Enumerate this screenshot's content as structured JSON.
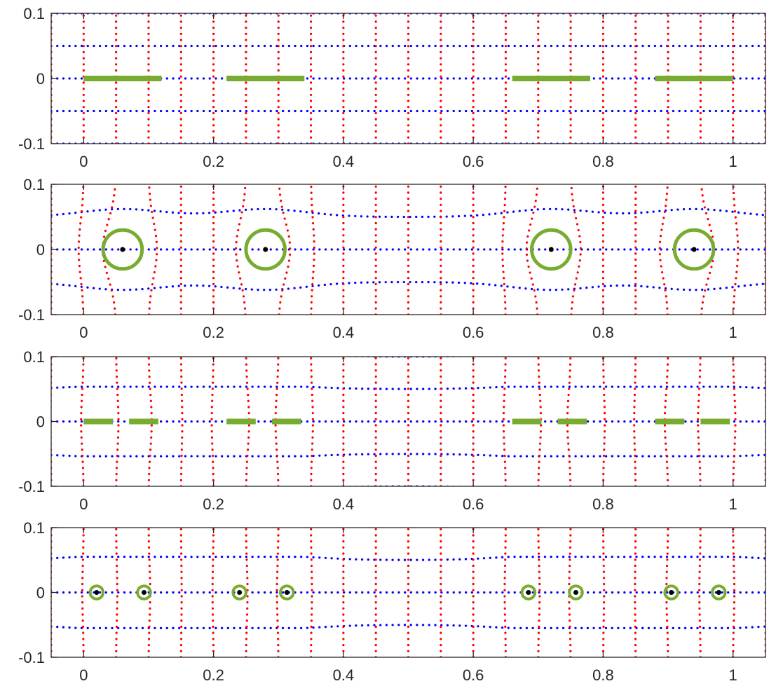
{
  "chart_data": [
    {
      "type": "line",
      "panel": "slits",
      "xlim": [
        -0.05,
        1.05
      ],
      "ylim": [
        -0.1,
        0.1
      ],
      "xticks": [
        0,
        0.2,
        0.4,
        0.6,
        0.8,
        1
      ],
      "xtick_labels": [
        "0",
        "0.2",
        "0.4",
        "0.6",
        "0.8",
        "1"
      ],
      "yticks": [
        0.1,
        0,
        -0.1
      ],
      "ytick_labels": [
        "0.1",
        "0",
        "-0.1"
      ],
      "grid": "dotted",
      "horizontal_lines_y": [
        -0.1,
        -0.05,
        0,
        0.05,
        0.1
      ],
      "vertical_lines_x": [
        -0.05,
        0,
        0.05,
        0.1,
        0.15,
        0.2,
        0.25,
        0.3,
        0.35,
        0.4,
        0.45,
        0.5,
        0.55,
        0.6,
        0.65,
        0.7,
        0.75,
        0.8,
        0.85,
        0.9,
        0.95,
        1,
        1.05
      ],
      "segments": [
        [
          0,
          0.12
        ],
        [
          0.22,
          0.34
        ],
        [
          0.66,
          0.78
        ],
        [
          0.88,
          1.0
        ]
      ],
      "distortion": 0
    },
    {
      "type": "line",
      "panel": "circles",
      "xlim": [
        -0.05,
        1.05
      ],
      "ylim": [
        -0.1,
        0.1
      ],
      "xticks": [
        0,
        0.2,
        0.4,
        0.6,
        0.8,
        1
      ],
      "xtick_labels": [
        "0",
        "0.2",
        "0.4",
        "0.6",
        "0.8",
        "1"
      ],
      "yticks": [
        0.1,
        0,
        -0.1
      ],
      "ytick_labels": [
        "0.1",
        "0",
        "-0.1"
      ],
      "grid": "dotted",
      "horizontal_lines_y": [
        -0.05,
        0,
        0.05
      ],
      "vertical_lines_x": [
        -0.05,
        0,
        0.05,
        0.1,
        0.15,
        0.2,
        0.25,
        0.3,
        0.35,
        0.4,
        0.45,
        0.5,
        0.55,
        0.6,
        0.65,
        0.7,
        0.75,
        0.8,
        0.85,
        0.9,
        0.95,
        1,
        1.05
      ],
      "circles": [
        {
          "cx": 0.06,
          "cy": 0,
          "r": 0.03
        },
        {
          "cx": 0.28,
          "cy": 0,
          "r": 0.03
        },
        {
          "cx": 0.72,
          "cy": 0,
          "r": 0.03
        },
        {
          "cx": 0.94,
          "cy": 0,
          "r": 0.03
        }
      ],
      "distortion": 1
    },
    {
      "type": "line",
      "panel": "split-slits",
      "xlim": [
        -0.05,
        1.05
      ],
      "ylim": [
        -0.1,
        0.1
      ],
      "xticks": [
        0,
        0.2,
        0.4,
        0.6,
        0.8,
        1
      ],
      "xtick_labels": [
        "0",
        "0.2",
        "0.4",
        "0.6",
        "0.8",
        "1"
      ],
      "yticks": [
        0.1,
        0,
        -0.1
      ],
      "ytick_labels": [
        "0.1",
        "0",
        "-0.1"
      ],
      "grid": "dotted",
      "horizontal_lines_y": [
        -0.1,
        -0.05,
        0,
        0.05,
        0.1
      ],
      "vertical_lines_x": [
        -0.05,
        0,
        0.05,
        0.1,
        0.15,
        0.2,
        0.25,
        0.3,
        0.35,
        0.4,
        0.45,
        0.5,
        0.55,
        0.6,
        0.65,
        0.7,
        0.75,
        0.8,
        0.85,
        0.9,
        0.95,
        1,
        1.05
      ],
      "segments": [
        [
          0,
          0.045
        ],
        [
          0.07,
          0.115
        ],
        [
          0.22,
          0.265
        ],
        [
          0.29,
          0.335
        ],
        [
          0.66,
          0.705
        ],
        [
          0.73,
          0.775
        ],
        [
          0.88,
          0.925
        ],
        [
          0.95,
          0.995
        ]
      ],
      "distortion": 0.25
    },
    {
      "type": "line",
      "panel": "small-circles",
      "xlim": [
        -0.05,
        1.05
      ],
      "ylim": [
        -0.1,
        0.1
      ],
      "xticks": [
        0,
        0.2,
        0.4,
        0.6,
        0.8,
        1
      ],
      "xtick_labels": [
        "0",
        "0.2",
        "0.4",
        "0.6",
        "0.8",
        "1"
      ],
      "yticks": [
        0.1,
        0,
        -0.1
      ],
      "ytick_labels": [
        "0.1",
        "0",
        "-0.1"
      ],
      "grid": "dotted",
      "horizontal_lines_y": [
        -0.05,
        0,
        0.05
      ],
      "vertical_lines_x": [
        -0.05,
        0,
        0.05,
        0.1,
        0.15,
        0.2,
        0.25,
        0.3,
        0.35,
        0.4,
        0.45,
        0.5,
        0.55,
        0.6,
        0.65,
        0.7,
        0.75,
        0.8,
        0.85,
        0.9,
        0.95,
        1,
        1.05
      ],
      "circles": [
        {
          "cx": 0.02,
          "cy": 0,
          "r": 0.01
        },
        {
          "cx": 0.093,
          "cy": 0,
          "r": 0.01
        },
        {
          "cx": 0.24,
          "cy": 0,
          "r": 0.01
        },
        {
          "cx": 0.313,
          "cy": 0,
          "r": 0.01
        },
        {
          "cx": 0.685,
          "cy": 0,
          "r": 0.01
        },
        {
          "cx": 0.758,
          "cy": 0,
          "r": 0.01
        },
        {
          "cx": 0.905,
          "cy": 0,
          "r": 0.01
        },
        {
          "cx": 0.978,
          "cy": 0,
          "r": 0.01
        }
      ],
      "distortion": 0.35
    }
  ],
  "colors": {
    "horizontal_lines": "#0000ff",
    "vertical_lines": "#ff0000",
    "shapes": "#77ac30",
    "centers": "#000000",
    "axes": "#262626"
  }
}
